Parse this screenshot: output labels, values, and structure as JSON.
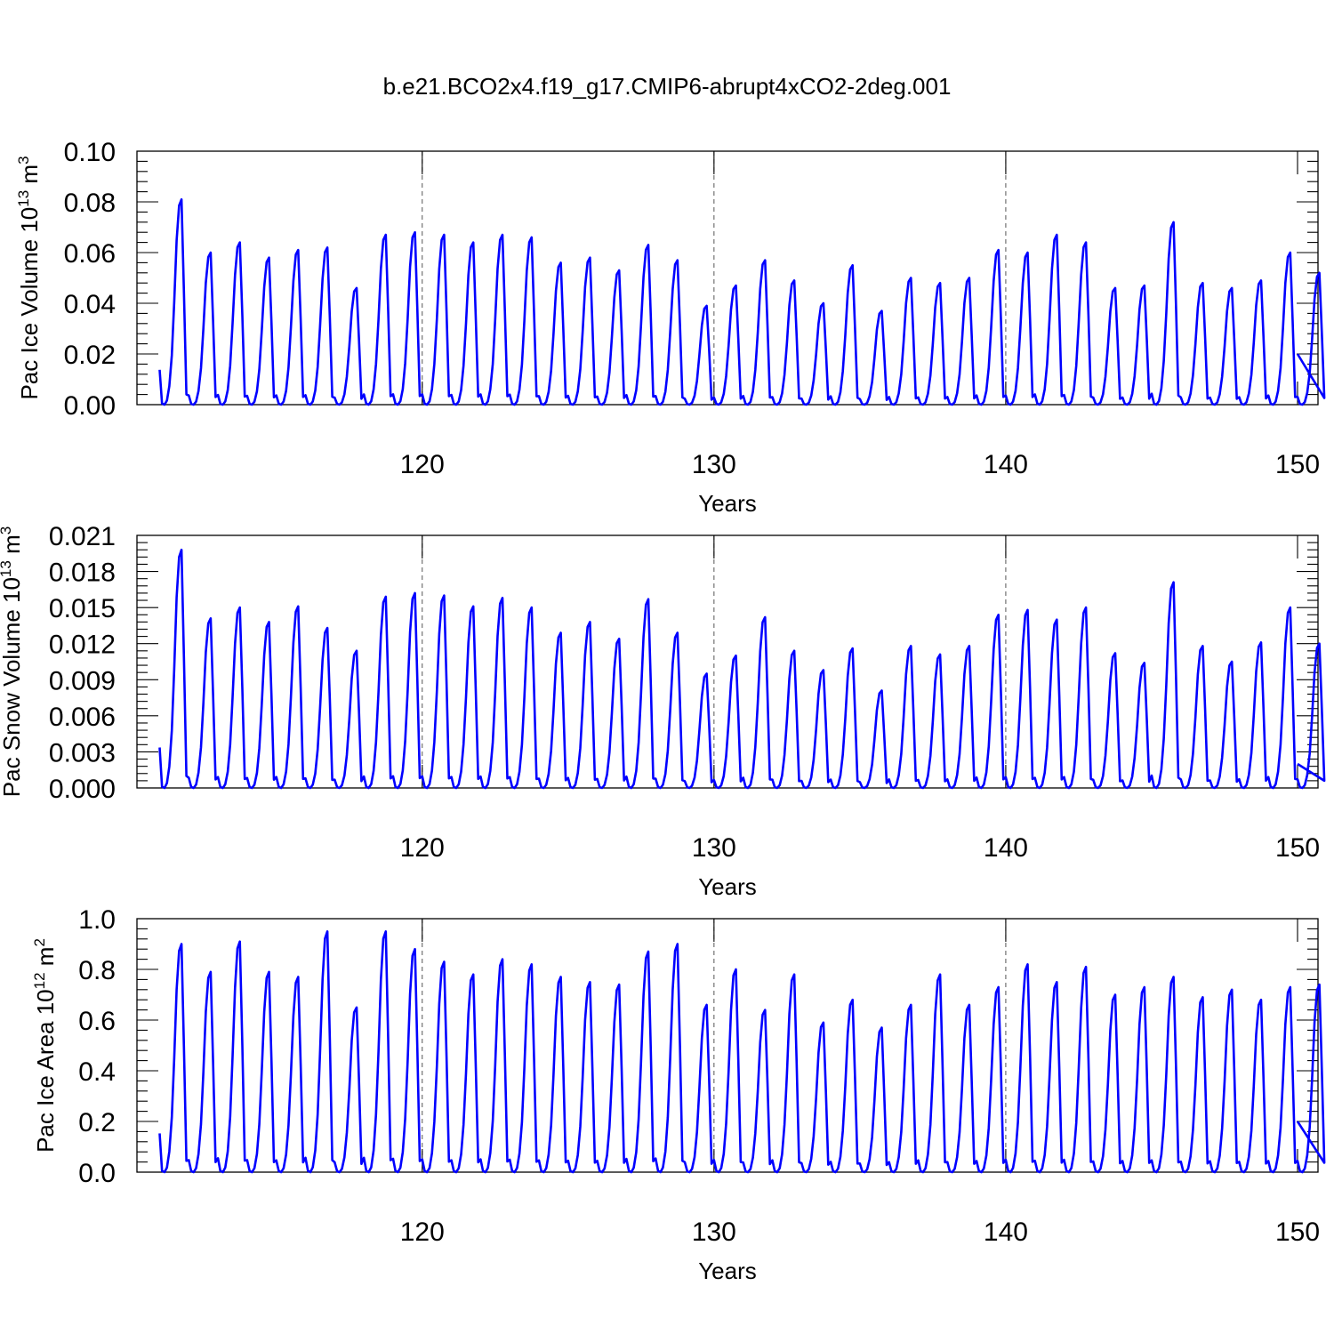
{
  "figure_title": "b.e21.BCO2x4.f19_g17.CMIP6-abrupt4xCO2-2deg.001",
  "colors": {
    "series": "#0000ff",
    "axes": "#000000",
    "grid": "#555555"
  },
  "chart_data": [
    {
      "type": "line",
      "title": "",
      "xlabel": "Years",
      "ylabel": {
        "main": "Pac Ice Volume 10",
        "exp": "13",
        "unit": " m",
        "unit_exp": "3"
      },
      "xlim": [
        111,
        150
      ],
      "ylim": [
        0,
        0.1
      ],
      "xticks": [
        120,
        130,
        140,
        150
      ],
      "yticks": [
        "0.00",
        "0.02",
        "0.04",
        "0.06",
        "0.08",
        "0.10"
      ],
      "grid": "dashed vertical at major x ticks",
      "series": [
        {
          "start_year": 111,
          "peaks": [
            0.081,
            0.06,
            0.064,
            0.058,
            0.061,
            0.062,
            0.046,
            0.067,
            0.068,
            0.067,
            0.064,
            0.067,
            0.066,
            0.056,
            0.058,
            0.053,
            0.063,
            0.057,
            0.039,
            0.047,
            0.057,
            0.049,
            0.04,
            0.055,
            0.037,
            0.05,
            0.048,
            0.05,
            0.061,
            0.06,
            0.067,
            0.064,
            0.046,
            0.047,
            0.072,
            0.048,
            0.046,
            0.049,
            0.06,
            0.052
          ],
          "end_value": 0.02
        }
      ]
    },
    {
      "type": "line",
      "title": "",
      "xlabel": "Years",
      "ylabel": {
        "main": "Pac Snow Volume 10",
        "exp": "13",
        "unit": " m",
        "unit_exp": "3"
      },
      "xlim": [
        111,
        150
      ],
      "ylim": [
        0,
        0.021
      ],
      "xticks": [
        120,
        130,
        140,
        150
      ],
      "yticks": [
        "0.000",
        "0.003",
        "0.006",
        "0.009",
        "0.012",
        "0.015",
        "0.018",
        "0.021"
      ],
      "grid": "dashed vertical at major x ticks",
      "series": [
        {
          "start_year": 111,
          "peaks": [
            0.0198,
            0.0141,
            0.015,
            0.0138,
            0.0151,
            0.0133,
            0.0114,
            0.0159,
            0.0162,
            0.016,
            0.0151,
            0.0158,
            0.015,
            0.0129,
            0.0138,
            0.0124,
            0.0157,
            0.0129,
            0.0095,
            0.011,
            0.0142,
            0.0114,
            0.0098,
            0.0116,
            0.0081,
            0.0118,
            0.0111,
            0.0118,
            0.0144,
            0.0148,
            0.014,
            0.015,
            0.0112,
            0.0104,
            0.0171,
            0.0118,
            0.0105,
            0.0121,
            0.015,
            0.012
          ],
          "end_value": 0.002
        }
      ]
    },
    {
      "type": "line",
      "title": "",
      "xlabel": "Years",
      "ylabel": {
        "main": "Pac Ice Area 10",
        "exp": "12",
        "unit": " m",
        "unit_exp": "2"
      },
      "xlim": [
        111,
        150
      ],
      "ylim": [
        0,
        1.0
      ],
      "xticks": [
        120,
        130,
        140,
        150
      ],
      "yticks": [
        "0.0",
        "0.2",
        "0.4",
        "0.6",
        "0.8",
        "1.0"
      ],
      "grid": "dashed vertical at major x ticks",
      "series": [
        {
          "start_year": 111,
          "peaks": [
            0.9,
            0.79,
            0.91,
            0.79,
            0.77,
            0.95,
            0.65,
            0.95,
            0.88,
            0.83,
            0.78,
            0.84,
            0.82,
            0.77,
            0.75,
            0.74,
            0.87,
            0.9,
            0.66,
            0.8,
            0.64,
            0.78,
            0.59,
            0.68,
            0.57,
            0.66,
            0.78,
            0.66,
            0.73,
            0.82,
            0.75,
            0.81,
            0.7,
            0.73,
            0.77,
            0.69,
            0.72,
            0.68,
            0.73,
            0.74
          ],
          "end_value": 0.2
        }
      ]
    }
  ]
}
